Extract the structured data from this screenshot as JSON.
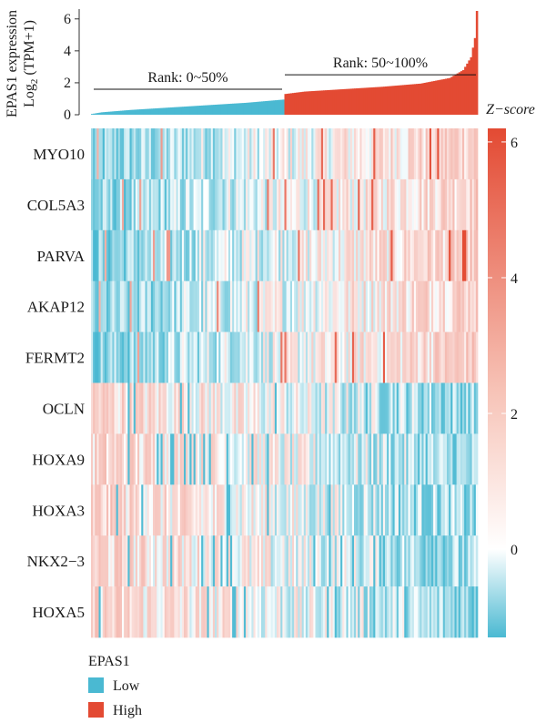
{
  "chart_data": [
    {
      "type": "area",
      "ylabel_line1": "EPAS1 expression",
      "ylabel_line2": "Log",
      "ylabel_sub": "2",
      "ylabel_line2_tail": " (TPM+1)",
      "ylim": [
        0,
        6.5
      ],
      "yticks": [
        0,
        2,
        4,
        6
      ],
      "n_samples": 200,
      "sorted_expression_anchors": [
        [
          0,
          0.05
        ],
        [
          5,
          0.15
        ],
        [
          20,
          0.3
        ],
        [
          40,
          0.45
        ],
        [
          60,
          0.6
        ],
        [
          80,
          0.75
        ],
        [
          99,
          0.95
        ],
        [
          100,
          1.3
        ],
        [
          110,
          1.45
        ],
        [
          130,
          1.6
        ],
        [
          150,
          1.75
        ],
        [
          170,
          1.95
        ],
        [
          185,
          2.3
        ],
        [
          192,
          2.8
        ],
        [
          196,
          3.6
        ],
        [
          198,
          4.8
        ],
        [
          199,
          6.5
        ]
      ],
      "annotations": [
        {
          "label": "Rank: 0~50%",
          "y": 1.6
        },
        {
          "label": "Rank: 50~100%",
          "y": 2.5
        }
      ]
    },
    {
      "type": "heatmap",
      "genes": [
        "MYO10",
        "COL5A3",
        "PARVA",
        "AKAP12",
        "FERMT2",
        "OCLN",
        "HOXA9",
        "HOXA3",
        "NKX2−3",
        "HOXA5"
      ],
      "gene_trend_in_high_group": [
        "up",
        "up",
        "up",
        "up",
        "up",
        "down",
        "down",
        "down",
        "down",
        "down"
      ],
      "n_columns": 200,
      "colorbar_title": "Z−score",
      "colorbar_ticks": [
        0,
        2,
        4,
        6
      ],
      "zlim": [
        -1.3,
        6.2
      ],
      "color_low": "#4ab9d2",
      "color_mid": "#ffffff",
      "color_high": "#e34a33"
    }
  ],
  "legend": {
    "title": "EPAS1",
    "items": [
      {
        "label": "Low",
        "color": "#4ab9d2"
      },
      {
        "label": "High",
        "color": "#e34a33"
      }
    ]
  }
}
